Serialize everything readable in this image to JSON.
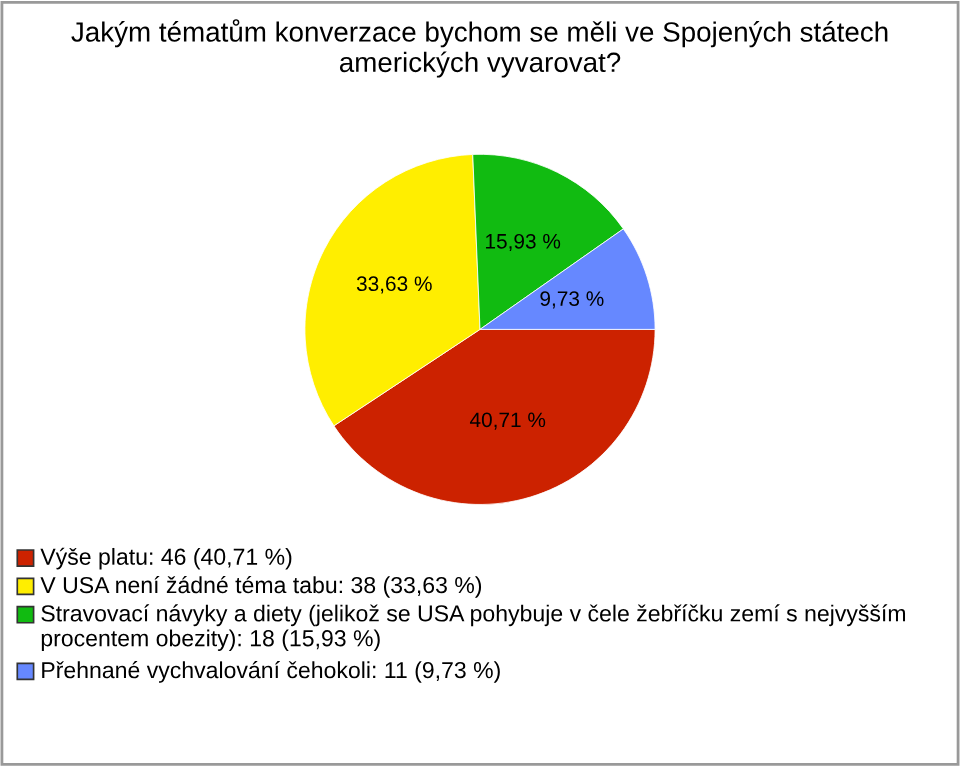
{
  "chart_data": {
    "type": "pie",
    "title": "Jakým tématům konverzace bychom se měli ve Spojených státech amerických vyvarovat?",
    "categories": [
      "Výše platu: 46 (40,71 %)",
      "V USA není žádné téma tabu: 38 (33,63 %)",
      "Stravovací návyky a diety (jelikož se USA pohybuje v čele žebříčku zemí s nejvyšším procentem obezity): 18 (15,93 %)",
      "Přehnané vychvalování čehokoli: 11 (9,73 %)"
    ],
    "values": [
      40.71,
      33.63,
      15.93,
      9.73
    ],
    "value_labels": [
      "40,71 %",
      "33,63 %",
      "15,93 %",
      "9,73 %"
    ],
    "colors": [
      "#cc2200",
      "#ffee00",
      "#11bb11",
      "#6688ff"
    ],
    "legend": "bottom"
  }
}
